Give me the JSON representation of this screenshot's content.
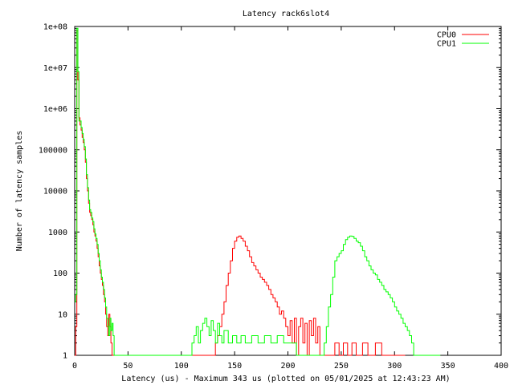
{
  "chart_data": {
    "type": "line",
    "title": "Latency rack6slot4",
    "xlabel": "Latency (us) - Maximum 343 us (plotted on 05/01/2025 at 12:43:23 AM)",
    "ylabel": "Number of latency samples",
    "xlim": [
      0,
      400
    ],
    "ylim": [
      1,
      100000000
    ],
    "y_scale": "log",
    "grid": false,
    "legend_position": "top-right",
    "x_ticks": [
      0,
      50,
      100,
      150,
      200,
      250,
      300,
      350,
      400
    ],
    "x_tick_labels": [
      "0",
      "50",
      "100",
      "150",
      "200",
      "250",
      "300",
      "350",
      "400"
    ],
    "y_ticks": [
      1,
      10,
      100,
      1000,
      10000,
      100000,
      1000000,
      10000000,
      100000000
    ],
    "y_tick_labels": [
      "1",
      "10",
      "100",
      "1000",
      "10000",
      "100000",
      "1e+06",
      "1e+07",
      "1e+08"
    ],
    "series": [
      {
        "name": "CPU0",
        "color": "#ff0000",
        "points": [
          [
            0,
            1
          ],
          [
            1,
            5
          ],
          [
            2,
            80000000
          ],
          [
            3,
            5000000
          ],
          [
            4,
            600000
          ],
          [
            5,
            400000
          ],
          [
            6,
            300000
          ],
          [
            7,
            200000
          ],
          [
            8,
            150000
          ],
          [
            9,
            100000
          ],
          [
            10,
            50000
          ],
          [
            11,
            20000
          ],
          [
            12,
            10000
          ],
          [
            13,
            5000
          ],
          [
            14,
            3000
          ],
          [
            15,
            2500
          ],
          [
            16,
            2000
          ],
          [
            17,
            1500
          ],
          [
            18,
            1000
          ],
          [
            19,
            800
          ],
          [
            20,
            600
          ],
          [
            21,
            400
          ],
          [
            22,
            250
          ],
          [
            23,
            150
          ],
          [
            24,
            100
          ],
          [
            25,
            70
          ],
          [
            26,
            50
          ],
          [
            27,
            30
          ],
          [
            28,
            20
          ],
          [
            29,
            10
          ],
          [
            30,
            5
          ],
          [
            31,
            3
          ],
          [
            32,
            10
          ],
          [
            33,
            5
          ],
          [
            34,
            2
          ],
          [
            35,
            1
          ],
          [
            36,
            1
          ],
          [
            37,
            1
          ],
          [
            38,
            1
          ],
          [
            40,
            1
          ],
          [
            128,
            1
          ],
          [
            130,
            1
          ],
          [
            132,
            2
          ],
          [
            134,
            3
          ],
          [
            136,
            5
          ],
          [
            138,
            10
          ],
          [
            140,
            20
          ],
          [
            142,
            50
          ],
          [
            144,
            100
          ],
          [
            146,
            200
          ],
          [
            148,
            400
          ],
          [
            150,
            600
          ],
          [
            152,
            750
          ],
          [
            154,
            800
          ],
          [
            156,
            700
          ],
          [
            158,
            600
          ],
          [
            160,
            450
          ],
          [
            162,
            350
          ],
          [
            164,
            250
          ],
          [
            166,
            180
          ],
          [
            168,
            150
          ],
          [
            170,
            120
          ],
          [
            172,
            100
          ],
          [
            174,
            80
          ],
          [
            176,
            70
          ],
          [
            178,
            60
          ],
          [
            180,
            50
          ],
          [
            182,
            40
          ],
          [
            184,
            30
          ],
          [
            186,
            25
          ],
          [
            188,
            20
          ],
          [
            190,
            15
          ],
          [
            192,
            10
          ],
          [
            194,
            12
          ],
          [
            196,
            8
          ],
          [
            198,
            5
          ],
          [
            200,
            3
          ],
          [
            202,
            7
          ],
          [
            204,
            2
          ],
          [
            206,
            8
          ],
          [
            208,
            1
          ],
          [
            210,
            5
          ],
          [
            212,
            8
          ],
          [
            214,
            2
          ],
          [
            216,
            6
          ],
          [
            218,
            1
          ],
          [
            220,
            7
          ],
          [
            222,
            3
          ],
          [
            224,
            8
          ],
          [
            226,
            2
          ],
          [
            228,
            5
          ],
          [
            230,
            1
          ],
          [
            234,
            1
          ],
          [
            240,
            1
          ],
          [
            244,
            2
          ],
          [
            248,
            1
          ],
          [
            252,
            2
          ],
          [
            256,
            1
          ],
          [
            260,
            2
          ],
          [
            264,
            1
          ],
          [
            270,
            2
          ],
          [
            275,
            1
          ],
          [
            282,
            2
          ],
          [
            288,
            1
          ],
          [
            294,
            1
          ],
          [
            300,
            1
          ],
          [
            310,
            1
          ]
        ]
      },
      {
        "name": "CPU1",
        "color": "#00ff00",
        "points": [
          [
            0,
            20
          ],
          [
            1,
            30
          ],
          [
            2,
            90000000
          ],
          [
            3,
            8000000
          ],
          [
            4,
            500000
          ],
          [
            5,
            500000
          ],
          [
            6,
            350000
          ],
          [
            7,
            250000
          ],
          [
            8,
            180000
          ],
          [
            9,
            120000
          ],
          [
            10,
            60000
          ],
          [
            11,
            25000
          ],
          [
            12,
            12000
          ],
          [
            13,
            6000
          ],
          [
            14,
            3500
          ],
          [
            15,
            3000
          ],
          [
            16,
            2200
          ],
          [
            17,
            1800
          ],
          [
            18,
            1200
          ],
          [
            19,
            900
          ],
          [
            20,
            700
          ],
          [
            21,
            500
          ],
          [
            22,
            300
          ],
          [
            23,
            200
          ],
          [
            24,
            120
          ],
          [
            25,
            80
          ],
          [
            26,
            60
          ],
          [
            27,
            40
          ],
          [
            28,
            25
          ],
          [
            29,
            15
          ],
          [
            30,
            8
          ],
          [
            31,
            5
          ],
          [
            32,
            3
          ],
          [
            33,
            8
          ],
          [
            34,
            4
          ],
          [
            35,
            6
          ],
          [
            36,
            3
          ],
          [
            37,
            1
          ],
          [
            38,
            1
          ],
          [
            40,
            1
          ],
          [
            68,
            1
          ],
          [
            90,
            1
          ],
          [
            100,
            1
          ],
          [
            106,
            1
          ],
          [
            110,
            2
          ],
          [
            112,
            3
          ],
          [
            114,
            5
          ],
          [
            116,
            2
          ],
          [
            118,
            4
          ],
          [
            120,
            6
          ],
          [
            122,
            8
          ],
          [
            124,
            5
          ],
          [
            126,
            3
          ],
          [
            128,
            7
          ],
          [
            130,
            4
          ],
          [
            132,
            2
          ],
          [
            134,
            6
          ],
          [
            136,
            3
          ],
          [
            138,
            2
          ],
          [
            140,
            4
          ],
          [
            144,
            2
          ],
          [
            148,
            3
          ],
          [
            152,
            2
          ],
          [
            156,
            3
          ],
          [
            160,
            2
          ],
          [
            166,
            3
          ],
          [
            172,
            2
          ],
          [
            178,
            3
          ],
          [
            184,
            2
          ],
          [
            190,
            3
          ],
          [
            196,
            2
          ],
          [
            202,
            2
          ],
          [
            208,
            1
          ],
          [
            214,
            1
          ],
          [
            220,
            1
          ],
          [
            228,
            1
          ],
          [
            234,
            2
          ],
          [
            236,
            5
          ],
          [
            238,
            15
          ],
          [
            240,
            30
          ],
          [
            242,
            80
          ],
          [
            244,
            200
          ],
          [
            246,
            250
          ],
          [
            248,
            300
          ],
          [
            250,
            350
          ],
          [
            252,
            500
          ],
          [
            254,
            650
          ],
          [
            256,
            750
          ],
          [
            258,
            800
          ],
          [
            260,
            780
          ],
          [
            262,
            700
          ],
          [
            264,
            600
          ],
          [
            266,
            550
          ],
          [
            268,
            450
          ],
          [
            270,
            350
          ],
          [
            272,
            250
          ],
          [
            274,
            200
          ],
          [
            276,
            150
          ],
          [
            278,
            120
          ],
          [
            280,
            100
          ],
          [
            282,
            90
          ],
          [
            284,
            70
          ],
          [
            286,
            60
          ],
          [
            288,
            50
          ],
          [
            290,
            40
          ],
          [
            292,
            35
          ],
          [
            294,
            30
          ],
          [
            296,
            25
          ],
          [
            298,
            20
          ],
          [
            300,
            15
          ],
          [
            302,
            12
          ],
          [
            304,
            10
          ],
          [
            306,
            8
          ],
          [
            308,
            6
          ],
          [
            310,
            5
          ],
          [
            312,
            4
          ],
          [
            314,
            3
          ],
          [
            316,
            2
          ],
          [
            318,
            1
          ],
          [
            320,
            1
          ],
          [
            325,
            1
          ],
          [
            330,
            1
          ],
          [
            335,
            1
          ],
          [
            340,
            1
          ],
          [
            343,
            1
          ]
        ]
      }
    ]
  }
}
